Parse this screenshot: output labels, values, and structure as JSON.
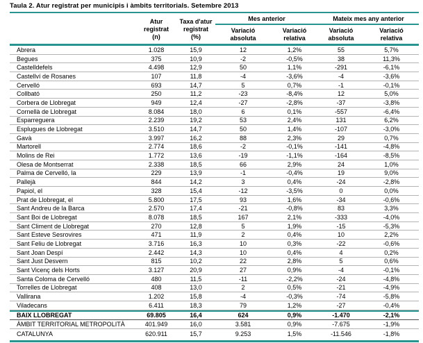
{
  "title": "Taula 2. Atur registrat per municipis i àmbits territorials. Setembre 2013",
  "colors": {
    "accent_teal": "#27948f",
    "row_line": "#b3b3b3",
    "dark_line": "#4a4a4a"
  },
  "table": {
    "headers": {
      "atur_registrat": "Atur\nregistrat\n(n)",
      "taxa_atur": "Taxa d'atur\nregistrat\n(%)",
      "group_prev_month": "Mes anterior",
      "group_prev_year": "Mateix mes any anterior",
      "var_abs_month": "Variació\nabsoluta",
      "var_rel_month": "Variació\nrelativa",
      "var_abs_year": "Variació\nabsoluta",
      "var_rel_year": "Variació\nrelativa"
    },
    "rows": [
      [
        "Abrera",
        "1.028",
        "15,9",
        "12",
        "1,2%",
        "55",
        "5,7%"
      ],
      [
        "Begues",
        "375",
        "10,9",
        "-2",
        "-0,5%",
        "38",
        "11,3%"
      ],
      [
        "Castelldefels",
        "4.498",
        "12,9",
        "50",
        "1,1%",
        "-291",
        "-6,1%"
      ],
      [
        "Castellví de Rosanes",
        "107",
        "11,8",
        "-4",
        "-3,6%",
        "-4",
        "-3,6%"
      ],
      [
        "Cervelló",
        "693",
        "14,7",
        "5",
        "0,7%",
        "-1",
        "-0,1%"
      ],
      [
        "Collbató",
        "250",
        "11,2",
        "-23",
        "-8,4%",
        "12",
        "5,0%"
      ],
      [
        "Corbera de Llobregat",
        "949",
        "12,4",
        "-27",
        "-2,8%",
        "-37",
        "-3,8%"
      ],
      [
        "Cornellà de Llobregat",
        "8.084",
        "18,0",
        "6",
        "0,1%",
        "-557",
        "-6,4%"
      ],
      [
        "Esparreguera",
        "2.239",
        "19,2",
        "53",
        "2,4%",
        "131",
        "6,2%"
      ],
      [
        "Esplugues de Llobregat",
        "3.510",
        "14,7",
        "50",
        "1,4%",
        "-107",
        "-3,0%"
      ],
      [
        "Gavà",
        "3.997",
        "16,2",
        "88",
        "2,3%",
        "29",
        "0,7%"
      ],
      [
        "Martorell",
        "2.774",
        "18,6",
        "-2",
        "-0,1%",
        "-141",
        "-4,8%"
      ],
      [
        "Molins de Rei",
        "1.772",
        "13,6",
        "-19",
        "-1,1%",
        "-164",
        "-8,5%"
      ],
      [
        "Olesa de Montserrat",
        "2.338",
        "18,5",
        "66",
        "2,9%",
        "24",
        "1,0%"
      ],
      [
        "Palma de Cervelló, la",
        "229",
        "13,9",
        "-1",
        "-0,4%",
        "19",
        "9,0%"
      ],
      [
        "Pallejà",
        "844",
        "14,2",
        "3",
        "0,4%",
        "-24",
        "-2,8%"
      ],
      [
        "Papiol, el",
        "328",
        "15,4",
        "-12",
        "-3,5%",
        "0",
        "0,0%"
      ],
      [
        "Prat de Llobregat, el",
        "5.800",
        "17,5",
        "93",
        "1,6%",
        "-34",
        "-0,6%"
      ],
      [
        "Sant Andreu de la Barca",
        "2.570",
        "17,4",
        "-21",
        "-0,8%",
        "83",
        "3,3%"
      ],
      [
        "Sant Boi de Llobregat",
        "8.078",
        "18,5",
        "167",
        "2,1%",
        "-333",
        "-4,0%"
      ],
      [
        "Sant Climent de Llobregat",
        "270",
        "12,8",
        "5",
        "1,9%",
        "-15",
        "-5,3%"
      ],
      [
        "Sant Esteve Sesrovires",
        "471",
        "11,9",
        "2",
        "0,4%",
        "10",
        "2,2%"
      ],
      [
        "Sant Feliu de Llobregat",
        "3.716",
        "16,3",
        "10",
        "0,3%",
        "-22",
        "-0,6%"
      ],
      [
        "Sant Joan Despí",
        "2.442",
        "14,3",
        "10",
        "0,4%",
        "4",
        "0,2%"
      ],
      [
        "Sant Just Desvern",
        "815",
        "10,2",
        "22",
        "2,8%",
        "5",
        "0,6%"
      ],
      [
        "Sant Vicenç dels Horts",
        "3.127",
        "20,9",
        "27",
        "0,9%",
        "-4",
        "-0,1%"
      ],
      [
        "Santa Coloma de Cervelló",
        "480",
        "11,5",
        "-11",
        "-2,2%",
        "-24",
        "-4,8%"
      ],
      [
        "Torrelles de Llobregat",
        "408",
        "13,0",
        "2",
        "0,5%",
        "-21",
        "-4,9%"
      ],
      [
        "Vallirana",
        "1.202",
        "15,8",
        "-4",
        "-0,3%",
        "-74",
        "-5,8%"
      ],
      [
        "Viladecans",
        "6.411",
        "18,3",
        "79",
        "1,2%",
        "-27",
        "-0,4%"
      ]
    ],
    "summary_rows": [
      {
        "cells": [
          "BAIX LLOBREGAT",
          "69.805",
          "16,4",
          "624",
          "0,9%",
          "-1.470",
          "-2,1%"
        ],
        "bold": true
      },
      {
        "cells": [
          "ÀMBIT TERRITORIAL METROPOLITÀ",
          "401.949",
          "16,0",
          "3.581",
          "0,9%",
          "-7.675",
          "-1,9%"
        ],
        "bold": false
      },
      {
        "cells": [
          "CATALUNYA",
          "620.911",
          "15,7",
          "9.253",
          "1,5%",
          "-11.546",
          "-1,8%"
        ],
        "bold": false
      }
    ]
  }
}
